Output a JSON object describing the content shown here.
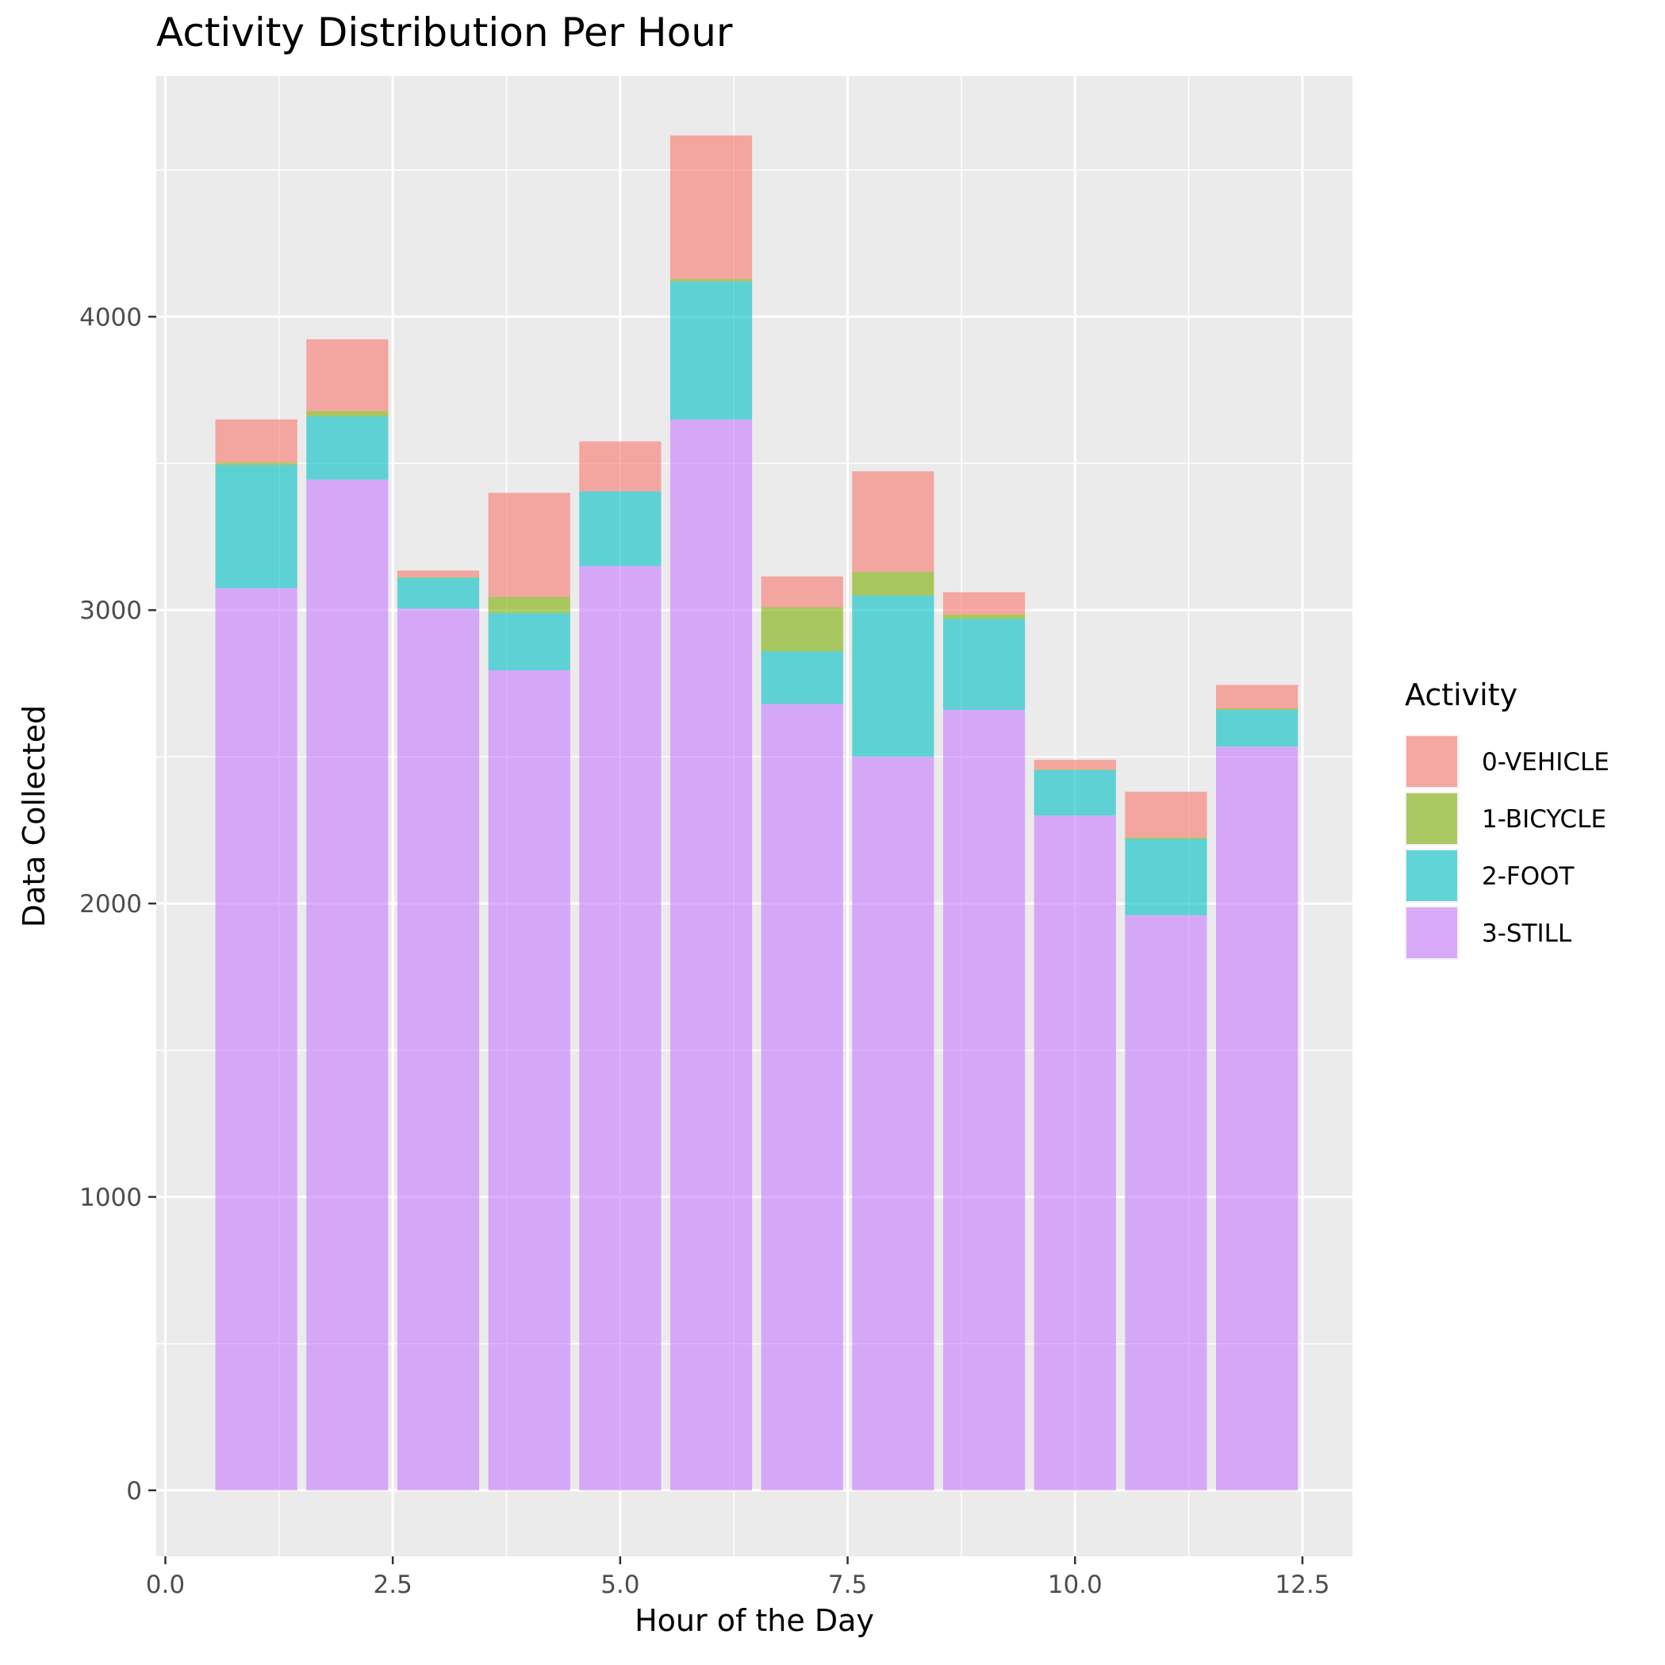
{
  "chart_data": {
    "type": "bar",
    "stacked": true,
    "title": "Activity Distribution Per Hour",
    "xlabel": "Hour of the Day",
    "ylabel": "Data Collected",
    "x": [
      1,
      2,
      3,
      4,
      5,
      6,
      7,
      8,
      9,
      10,
      11,
      12
    ],
    "xlim": [
      -0.1,
      13.05
    ],
    "ylim": [
      -225,
      4820
    ],
    "x_ticks": [
      0,
      2.5,
      5,
      7.5,
      10,
      12.5
    ],
    "x_tick_labels": [
      "0.0",
      "2.5",
      "5.0",
      "7.5",
      "10.0",
      "12.5"
    ],
    "y_ticks": [
      0,
      1000,
      2000,
      3000,
      4000
    ],
    "y_tick_labels": [
      "0",
      "1000",
      "2000",
      "3000",
      "4000"
    ],
    "grid": true,
    "legend_position": "right",
    "legend_title": "Activity",
    "series": [
      {
        "name": "3-STILL",
        "color": "#C77CFF",
        "values": [
          3075,
          3445,
          3005,
          2795,
          3150,
          3650,
          2680,
          2500,
          2660,
          2300,
          1960,
          2535
        ]
      },
      {
        "name": "2-FOOT",
        "color": "#00BFC4",
        "values": [
          420,
          215,
          105,
          195,
          255,
          470,
          180,
          550,
          310,
          155,
          260,
          125
        ]
      },
      {
        "name": "1-BICYCLE",
        "color": "#7CAE00",
        "values": [
          8,
          18,
          2,
          55,
          0,
          8,
          150,
          80,
          15,
          2,
          5,
          5
        ]
      },
      {
        "name": "0-VEHICLE",
        "color": "#F8766D",
        "values": [
          147,
          245,
          23,
          355,
          170,
          490,
          105,
          343,
          76,
          33,
          156,
          80
        ]
      }
    ],
    "legend_order": [
      "0-VEHICLE",
      "1-BICYCLE",
      "2-FOOT",
      "3-STILL"
    ],
    "bar_opacity": 0.6,
    "bar_width": 0.9
  }
}
